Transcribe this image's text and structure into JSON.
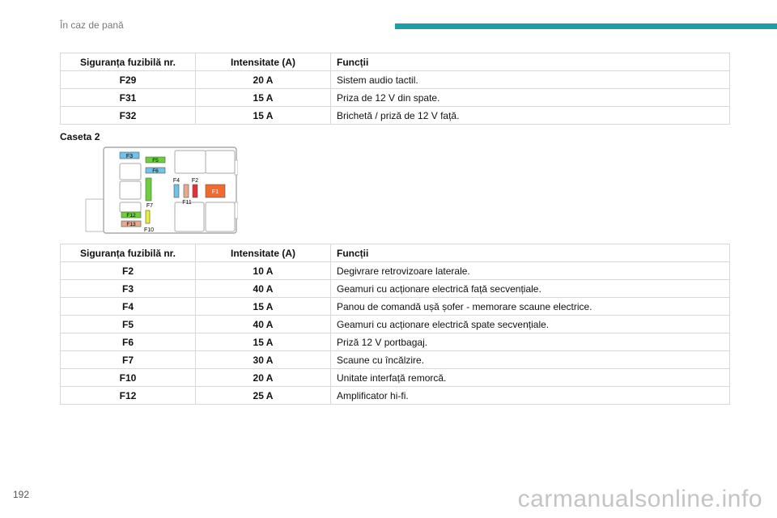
{
  "header": {
    "title": "În caz de pană"
  },
  "table_headers": {
    "fuse": "Siguranța fuzibilă nr.",
    "amps": "Intensitate (A)",
    "func": "Funcții"
  },
  "table1": [
    {
      "fuse": "F29",
      "amps": "20 A",
      "func": "Sistem audio tactil."
    },
    {
      "fuse": "F31",
      "amps": "15 A",
      "func": "Priza de 12 V din spate."
    },
    {
      "fuse": "F32",
      "amps": "15 A",
      "func": "Brichetă / priză de 12 V față."
    }
  ],
  "caption": "Caseta 2",
  "diagram_labels": {
    "f1": "F1",
    "f2": "F2",
    "f3": "F3",
    "f4": "F4",
    "f5": "F5",
    "f6": "F6",
    "f7": "F7",
    "f10": "F10",
    "f11": "F11",
    "f12": "F12",
    "f13": "F13"
  },
  "table2": [
    {
      "fuse": "F2",
      "amps": "10 A",
      "func": "Degivrare retrovizoare laterale."
    },
    {
      "fuse": "F3",
      "amps": "40 A",
      "func": "Geamuri cu acționare electrică față secvențiale."
    },
    {
      "fuse": "F4",
      "amps": "15 A",
      "func": "Panou de comandă ușă șofer - memorare scaune electrice."
    },
    {
      "fuse": "F5",
      "amps": "40 A",
      "func": "Geamuri cu acționare electrică spate secvențiale."
    },
    {
      "fuse": "F6",
      "amps": "15 A",
      "func": "Priză 12 V portbagaj."
    },
    {
      "fuse": "F7",
      "amps": "30 A",
      "func": "Scaune cu încălzire."
    },
    {
      "fuse": "F10",
      "amps": "20 A",
      "func": "Unitate interfață remorcă."
    },
    {
      "fuse": "F12",
      "amps": "25 A",
      "func": "Amplificator hi-fi."
    }
  ],
  "footer": {
    "page_number": "192",
    "watermark": "carmanualsonline.info"
  },
  "colors": {
    "accent": "#1aa0a8",
    "fuse_blue": "#6ec3e6",
    "fuse_green": "#6ccf3c",
    "fuse_orange": "#f26a2e",
    "fuse_tan": "#e8a98e",
    "fuse_red": "#e0323c",
    "fuse_yellow": "#e9ef3a"
  }
}
